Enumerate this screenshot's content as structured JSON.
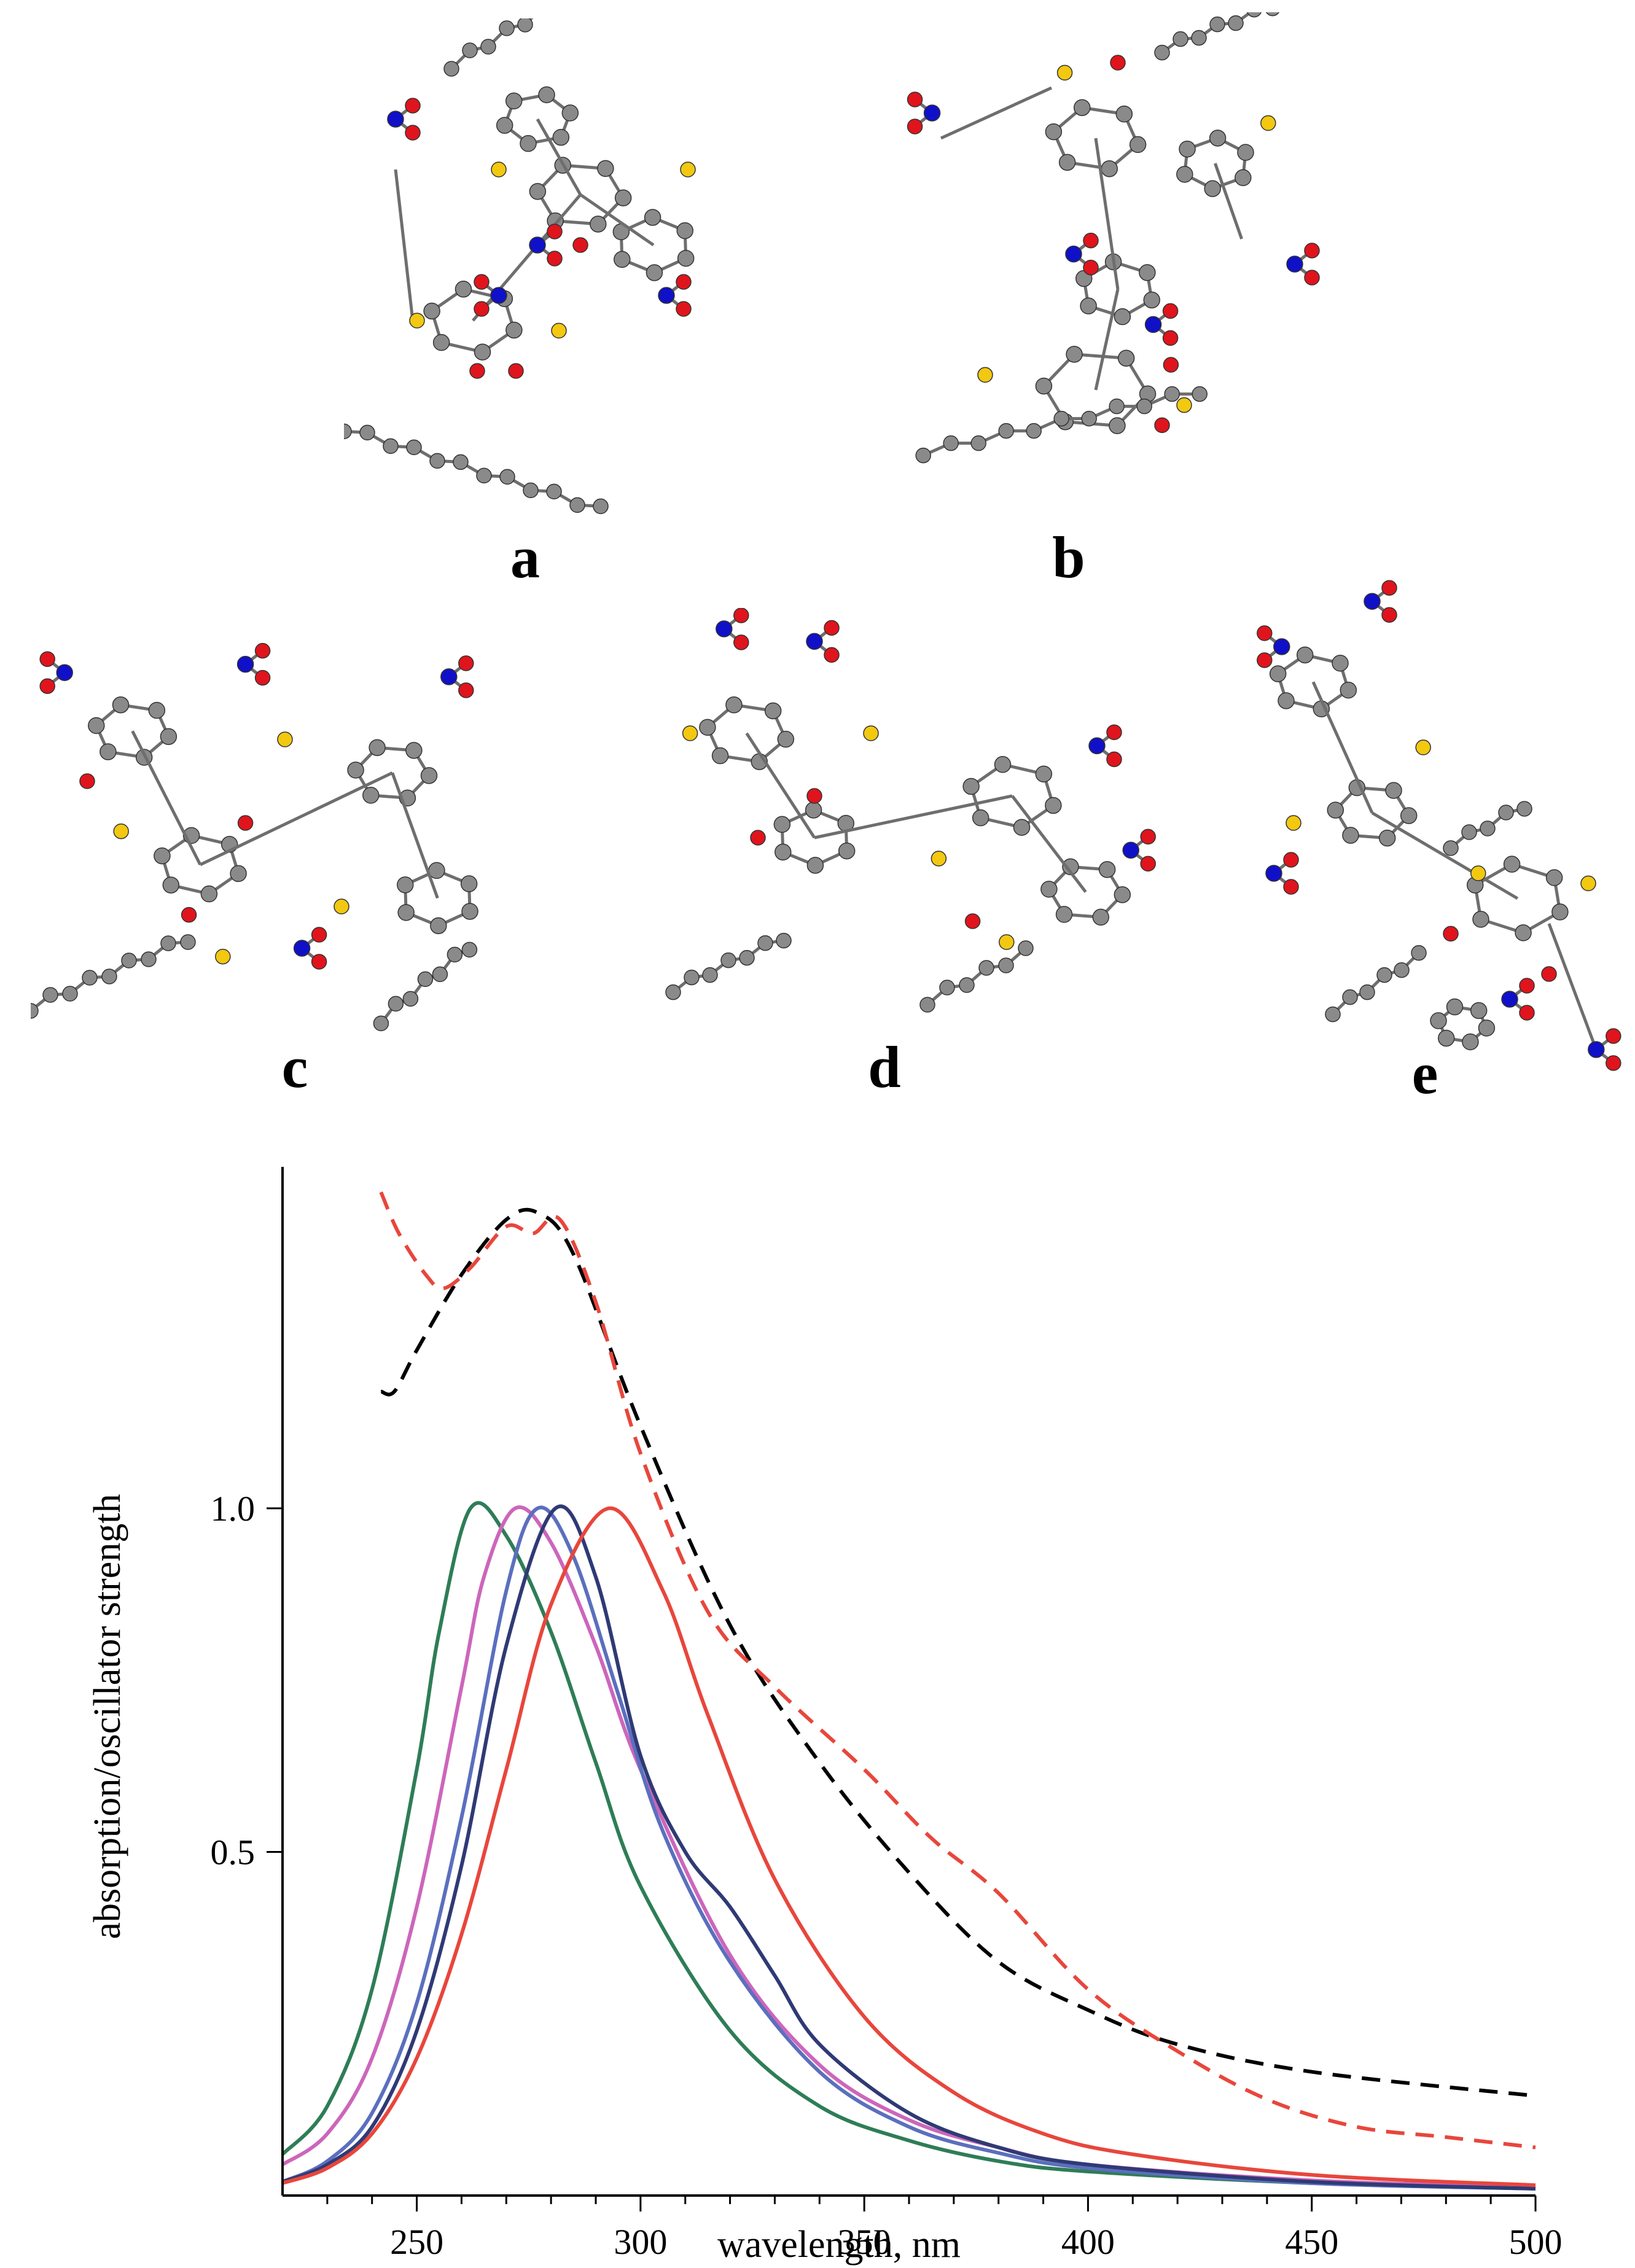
{
  "panel_labels": [
    "a",
    "b",
    "c",
    "d",
    "e"
  ],
  "atom_colors": {
    "carbon": "#8a8a8a",
    "oxygen": "#e0141c",
    "nitrogen": "#1010c8",
    "sulfur": "#f2c811",
    "bond": "#6e6e6e"
  },
  "chart_data": {
    "type": "line",
    "xlabel": "wavelength, nm",
    "ylabel": "absorption/oscillator strength",
    "xlim": [
      220,
      500
    ],
    "ylim": [
      0,
      1.47
    ],
    "xticks": [
      250,
      300,
      350,
      400,
      450,
      500
    ],
    "xtick_labels": [
      "250",
      "300",
      "350",
      "400",
      "450",
      "500"
    ],
    "yticks": [
      0.5,
      1.0
    ],
    "ytick_labels": [
      "0.5",
      "1.0"
    ],
    "grid": false,
    "series": [
      {
        "color": "#2e7d57",
        "style": "solid",
        "peak_x": 262,
        "peak_y": 1.0,
        "x": [
          220,
          230,
          240,
          250,
          255,
          262,
          270,
          280,
          290,
          300,
          320,
          340,
          360,
          380,
          400,
          450,
          500
        ],
        "y": [
          0.06,
          0.13,
          0.3,
          0.62,
          0.82,
          1.0,
          0.96,
          0.82,
          0.63,
          0.45,
          0.24,
          0.13,
          0.08,
          0.05,
          0.035,
          0.018,
          0.01
        ]
      },
      {
        "color": "#cc66bb",
        "style": "solid",
        "peak_x": 272,
        "peak_y": 1.0,
        "x": [
          220,
          230,
          240,
          250,
          260,
          265,
          272,
          280,
          290,
          300,
          320,
          340,
          360,
          380,
          400,
          450,
          500
        ],
        "y": [
          0.045,
          0.09,
          0.2,
          0.42,
          0.74,
          0.9,
          1.0,
          0.95,
          0.8,
          0.62,
          0.35,
          0.19,
          0.11,
          0.07,
          0.045,
          0.022,
          0.012
        ]
      },
      {
        "color": "#5b6fbe",
        "style": "solid",
        "peak_x": 277,
        "peak_y": 1.0,
        "x": [
          220,
          230,
          240,
          250,
          260,
          270,
          277,
          285,
          295,
          305,
          320,
          340,
          360,
          380,
          400,
          450,
          500
        ],
        "y": [
          0.02,
          0.05,
          0.12,
          0.28,
          0.55,
          0.88,
          1.0,
          0.93,
          0.73,
          0.53,
          0.34,
          0.18,
          0.1,
          0.062,
          0.04,
          0.018,
          0.01
        ]
      },
      {
        "color": "#2f3a75",
        "style": "solid",
        "peak_x": 281,
        "peak_y": 1.0,
        "x": [
          220,
          230,
          240,
          250,
          260,
          270,
          281,
          290,
          300,
          310,
          320,
          330,
          340,
          360,
          380,
          400,
          450,
          500
        ],
        "y": [
          0.02,
          0.045,
          0.1,
          0.24,
          0.48,
          0.8,
          1.0,
          0.9,
          0.64,
          0.5,
          0.42,
          0.32,
          0.22,
          0.12,
          0.07,
          0.045,
          0.02,
          0.01
        ]
      },
      {
        "color": "#e8463c",
        "style": "solid",
        "peak_x": 293,
        "peak_y": 1.0,
        "x": [
          220,
          230,
          240,
          250,
          260,
          270,
          280,
          293,
          305,
          315,
          330,
          350,
          370,
          390,
          410,
          450,
          500
        ],
        "y": [
          0.018,
          0.04,
          0.09,
          0.2,
          0.38,
          0.62,
          0.86,
          1.0,
          0.88,
          0.7,
          0.46,
          0.26,
          0.15,
          0.09,
          0.06,
          0.03,
          0.015
        ]
      },
      {
        "color": "#000000",
        "style": "dashed",
        "x": [
          242,
          245,
          250,
          260,
          270,
          277,
          285,
          300,
          320,
          340,
          360,
          380,
          400,
          420,
          450,
          500
        ],
        "y": [
          1.17,
          1.17,
          1.23,
          1.34,
          1.42,
          1.43,
          1.37,
          1.12,
          0.83,
          0.63,
          0.47,
          0.34,
          0.27,
          0.22,
          0.18,
          0.145
        ]
      },
      {
        "color": "#e8463c",
        "style": "dashed",
        "x": [
          242,
          246,
          252,
          256,
          262,
          270,
          276,
          282,
          290,
          300,
          315,
          330,
          350,
          365,
          380,
          400,
          420,
          440,
          460,
          480,
          500
        ],
        "y": [
          1.46,
          1.4,
          1.34,
          1.32,
          1.35,
          1.41,
          1.4,
          1.42,
          1.3,
          1.08,
          0.85,
          0.74,
          0.62,
          0.52,
          0.44,
          0.3,
          0.21,
          0.14,
          0.1,
          0.085,
          0.07
        ]
      }
    ]
  }
}
